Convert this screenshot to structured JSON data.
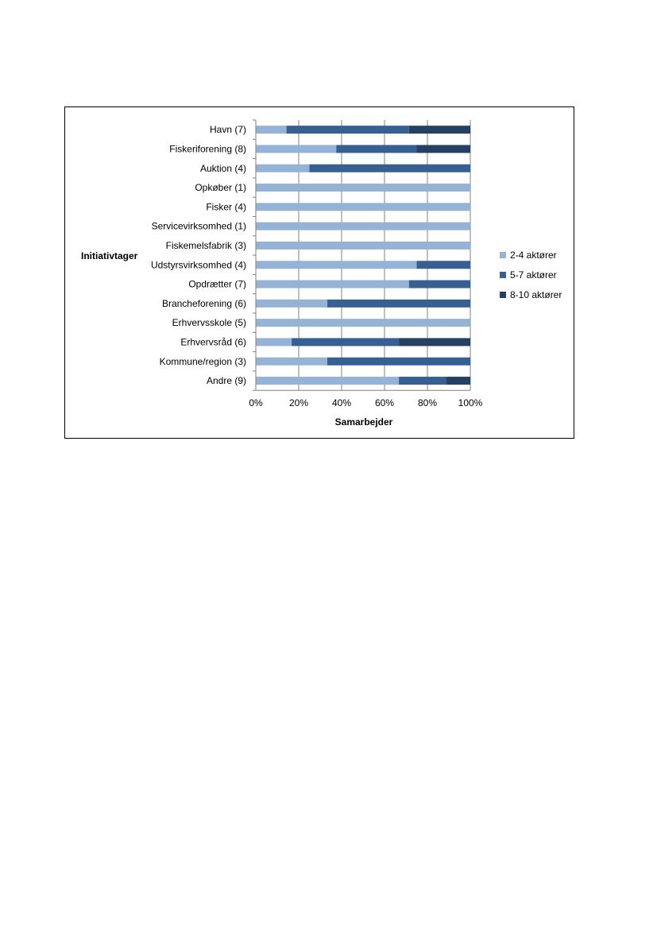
{
  "chart_data": {
    "type": "bar",
    "orientation": "horizontal",
    "stacked": "percent",
    "xlabel": "Samarbejder",
    "ylabel": "Initiativtager",
    "xlim": [
      0,
      100
    ],
    "x_ticks": [
      "0%",
      "20%",
      "40%",
      "60%",
      "80%",
      "100%"
    ],
    "grid": true,
    "legend_position": "right",
    "categories": [
      "Havn (7)",
      "Fiskeriforening (8)",
      "Auktion (4)",
      "Opkøber (1)",
      "Fisker (4)",
      "Servicevirksomhed (1)",
      "Fiskemelsfabrik (3)",
      "Udstyrsvirksomhed (4)",
      "Opdrætter (7)",
      "Brancheforening (6)",
      "Erhvervsskole (5)",
      "Erhvervsråd (6)",
      "Kommune/region (3)",
      "Andre (9)"
    ],
    "series": [
      {
        "name": "2-4 aktører",
        "color": "#95B3D7",
        "values": [
          14.3,
          37.5,
          25,
          100,
          100,
          100,
          100,
          75,
          71.4,
          33.3,
          100,
          16.7,
          33.3,
          66.7
        ]
      },
      {
        "name": "5-7 aktører",
        "color": "#376092",
        "values": [
          57.1,
          37.5,
          75,
          0,
          0,
          0,
          0,
          25,
          28.6,
          66.7,
          0,
          50,
          66.7,
          22.2
        ]
      },
      {
        "name": "8-10 aktører",
        "color": "#254061",
        "values": [
          28.6,
          25,
          0,
          0,
          0,
          0,
          0,
          0,
          0,
          0,
          0,
          33.3,
          0,
          11.1
        ]
      }
    ]
  }
}
